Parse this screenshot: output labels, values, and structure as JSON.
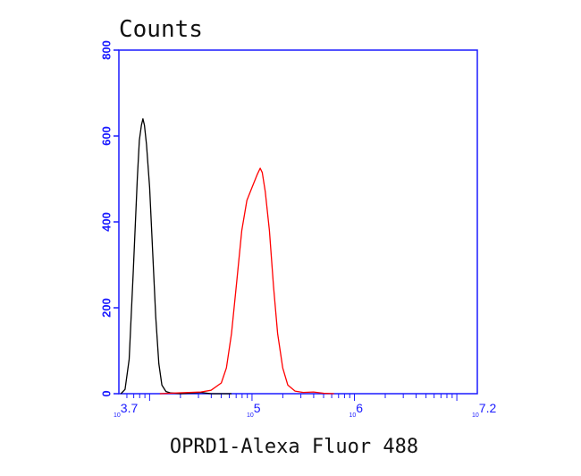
{
  "chart_data": {
    "type": "line",
    "title": "",
    "ylabel": "Counts",
    "xlabel": "OPRD1-Alexa Fluor 488",
    "x_scale": "log10",
    "xlim_exp": [
      3.7,
      7.2
    ],
    "ylim": [
      0,
      800
    ],
    "y_ticks": [
      "0",
      "200",
      "400",
      "600",
      "800"
    ],
    "x_ticks": [
      {
        "base": "10",
        "exp": "3.7",
        "value": 3.7
      },
      {
        "base": "10",
        "exp": "5",
        "value": 5
      },
      {
        "base": "10",
        "exp": "6",
        "value": 6
      },
      {
        "base": "10",
        "exp": "7.2",
        "value": 7.2
      }
    ],
    "grid": false,
    "colors": {
      "axis": "#1a1aff",
      "black_series": "#000000",
      "red_series": "#ff0000"
    },
    "series": [
      {
        "color": "#000000",
        "points": [
          [
            3.72,
            0
          ],
          [
            3.76,
            10
          ],
          [
            3.8,
            80
          ],
          [
            3.84,
            280
          ],
          [
            3.88,
            500
          ],
          [
            3.9,
            590
          ],
          [
            3.92,
            625
          ],
          [
            3.935,
            640
          ],
          [
            3.95,
            625
          ],
          [
            3.97,
            580
          ],
          [
            4.0,
            480
          ],
          [
            4.03,
            330
          ],
          [
            4.06,
            180
          ],
          [
            4.09,
            70
          ],
          [
            4.12,
            20
          ],
          [
            4.16,
            5
          ],
          [
            4.2,
            2
          ],
          [
            4.3,
            0
          ],
          [
            4.5,
            3
          ],
          [
            4.6,
            0
          ],
          [
            4.8,
            0
          ]
        ]
      },
      {
        "color": "#ff0000",
        "points": [
          [
            4.1,
            0
          ],
          [
            4.3,
            2
          ],
          [
            4.5,
            4
          ],
          [
            4.6,
            8
          ],
          [
            4.7,
            25
          ],
          [
            4.75,
            60
          ],
          [
            4.8,
            140
          ],
          [
            4.85,
            260
          ],
          [
            4.9,
            380
          ],
          [
            4.95,
            450
          ],
          [
            5.0,
            480
          ],
          [
            5.05,
            510
          ],
          [
            5.08,
            525
          ],
          [
            5.1,
            515
          ],
          [
            5.13,
            470
          ],
          [
            5.17,
            380
          ],
          [
            5.21,
            250
          ],
          [
            5.25,
            140
          ],
          [
            5.3,
            60
          ],
          [
            5.35,
            20
          ],
          [
            5.42,
            6
          ],
          [
            5.5,
            3
          ],
          [
            5.6,
            4
          ],
          [
            5.7,
            1
          ],
          [
            5.8,
            0
          ]
        ]
      }
    ]
  }
}
